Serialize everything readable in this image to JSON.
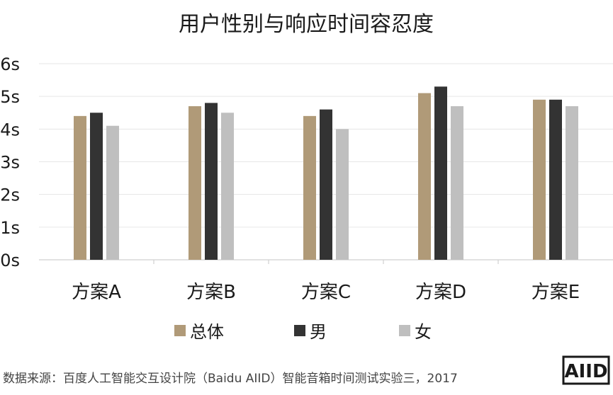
{
  "chart_data": {
    "type": "bar",
    "title": "用户性别与响应时间容忍度",
    "categories": [
      "方案A",
      "方案B",
      "方案C",
      "方案D",
      "方案E"
    ],
    "series": [
      {
        "name": "总体",
        "color": "#b09a78",
        "values": [
          4.4,
          4.7,
          4.4,
          5.1,
          4.9
        ]
      },
      {
        "name": "男",
        "color": "#333333",
        "values": [
          4.5,
          4.8,
          4.6,
          5.3,
          4.9
        ]
      },
      {
        "name": "女",
        "color": "#bfbfbf",
        "values": [
          4.1,
          4.5,
          4.0,
          4.7,
          4.7
        ]
      }
    ],
    "yticks": [
      "0s",
      "1s",
      "2s",
      "3s",
      "4s",
      "5s",
      "6s"
    ],
    "ylim": [
      0,
      6
    ],
    "grid": true,
    "legend_position": "bottom"
  },
  "source": "数据来源：百度人工智能交互设计院（Baidu AIID）智能音箱时间测试实验三，2017",
  "logo": {
    "text": "AIID"
  }
}
